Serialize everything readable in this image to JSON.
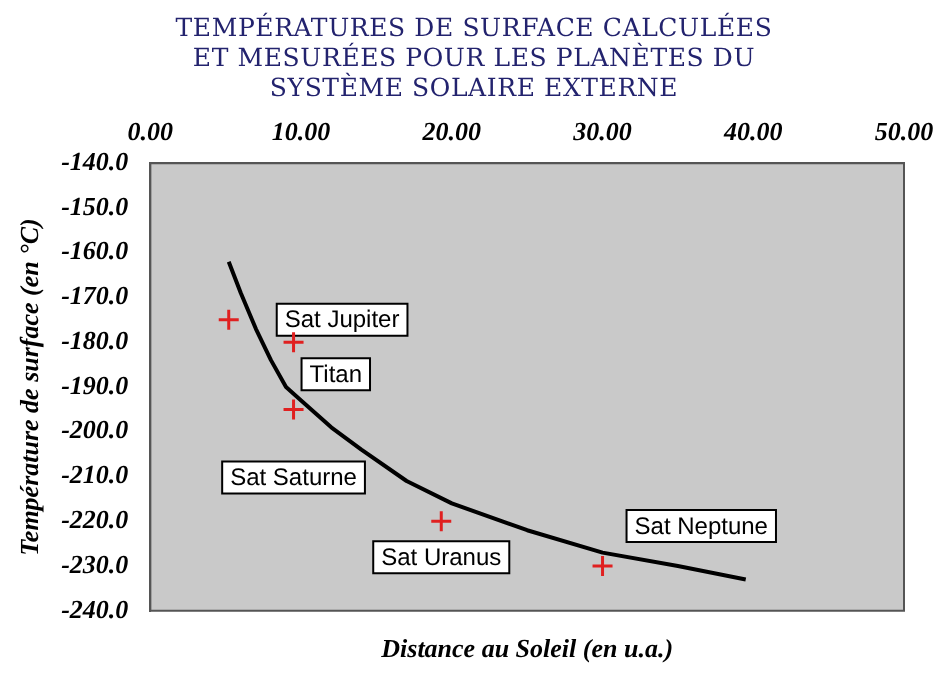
{
  "chart_data": {
    "type": "scatter",
    "title": "TEMPÉRATURES DE SURFACE CALCULÉES ET MESURÉES POUR LES PLANÈTES DU SYSTÈME SOLAIRE EXTERNE",
    "xlabel": "Distance au Soleil (en u.a.)",
    "ylabel": "Température de surface (en °C)",
    "xlim": [
      0,
      50
    ],
    "xticks": [
      {
        "value": 0,
        "label": "0.00"
      },
      {
        "value": 10,
        "label": "10.00"
      },
      {
        "value": 20,
        "label": "20.00"
      },
      {
        "value": 30,
        "label": "30.00"
      },
      {
        "value": 40,
        "label": "40.00"
      },
      {
        "value": 50,
        "label": "50.00"
      }
    ],
    "ylim": [
      -240,
      -140
    ],
    "yticks": [
      {
        "value": -140,
        "label": "-140.0"
      },
      {
        "value": -150,
        "label": "-150.0"
      },
      {
        "value": -160,
        "label": "-160.0"
      },
      {
        "value": -170,
        "label": "-170.0"
      },
      {
        "value": -180,
        "label": "-180.0"
      },
      {
        "value": -190,
        "label": "-190.0"
      },
      {
        "value": -200,
        "label": "-200.0"
      },
      {
        "value": -210,
        "label": "-210.0"
      },
      {
        "value": -220,
        "label": "-220.0"
      },
      {
        "value": -230,
        "label": "-230.0"
      },
      {
        "value": -240,
        "label": "-240.0"
      }
    ],
    "series": [
      {
        "type": "scatter",
        "color": "#e02020",
        "marker": "cross",
        "x": [
          5.2,
          9.5,
          9.5,
          19.3,
          30
        ],
        "values": [
          -175,
          -180,
          -195,
          -220,
          -230
        ]
      },
      {
        "type": "line",
        "color": "#000000",
        "marker": "none",
        "x": [
          5.2,
          6,
          7,
          8,
          9,
          10,
          12,
          14,
          17,
          20,
          25,
          30,
          35,
          39.5
        ],
        "values": [
          -162,
          -169,
          -177,
          -184,
          -190,
          -193,
          -199,
          -204,
          -211,
          -216,
          -222,
          -227,
          -230,
          -233
        ]
      }
    ],
    "annotations": [
      {
        "text": "Sat Jupiter",
        "x": 5.2,
        "y": -175
      },
      {
        "text": "Titan",
        "x": 9.5,
        "y": -180
      },
      {
        "text": "Sat Saturne",
        "x": 9.5,
        "y": -195
      },
      {
        "text": "Sat Uranus",
        "x": 19.3,
        "y": -220
      },
      {
        "text": "Sat Neptune",
        "x": 30,
        "y": -230
      }
    ],
    "grid": false,
    "legend": false
  }
}
